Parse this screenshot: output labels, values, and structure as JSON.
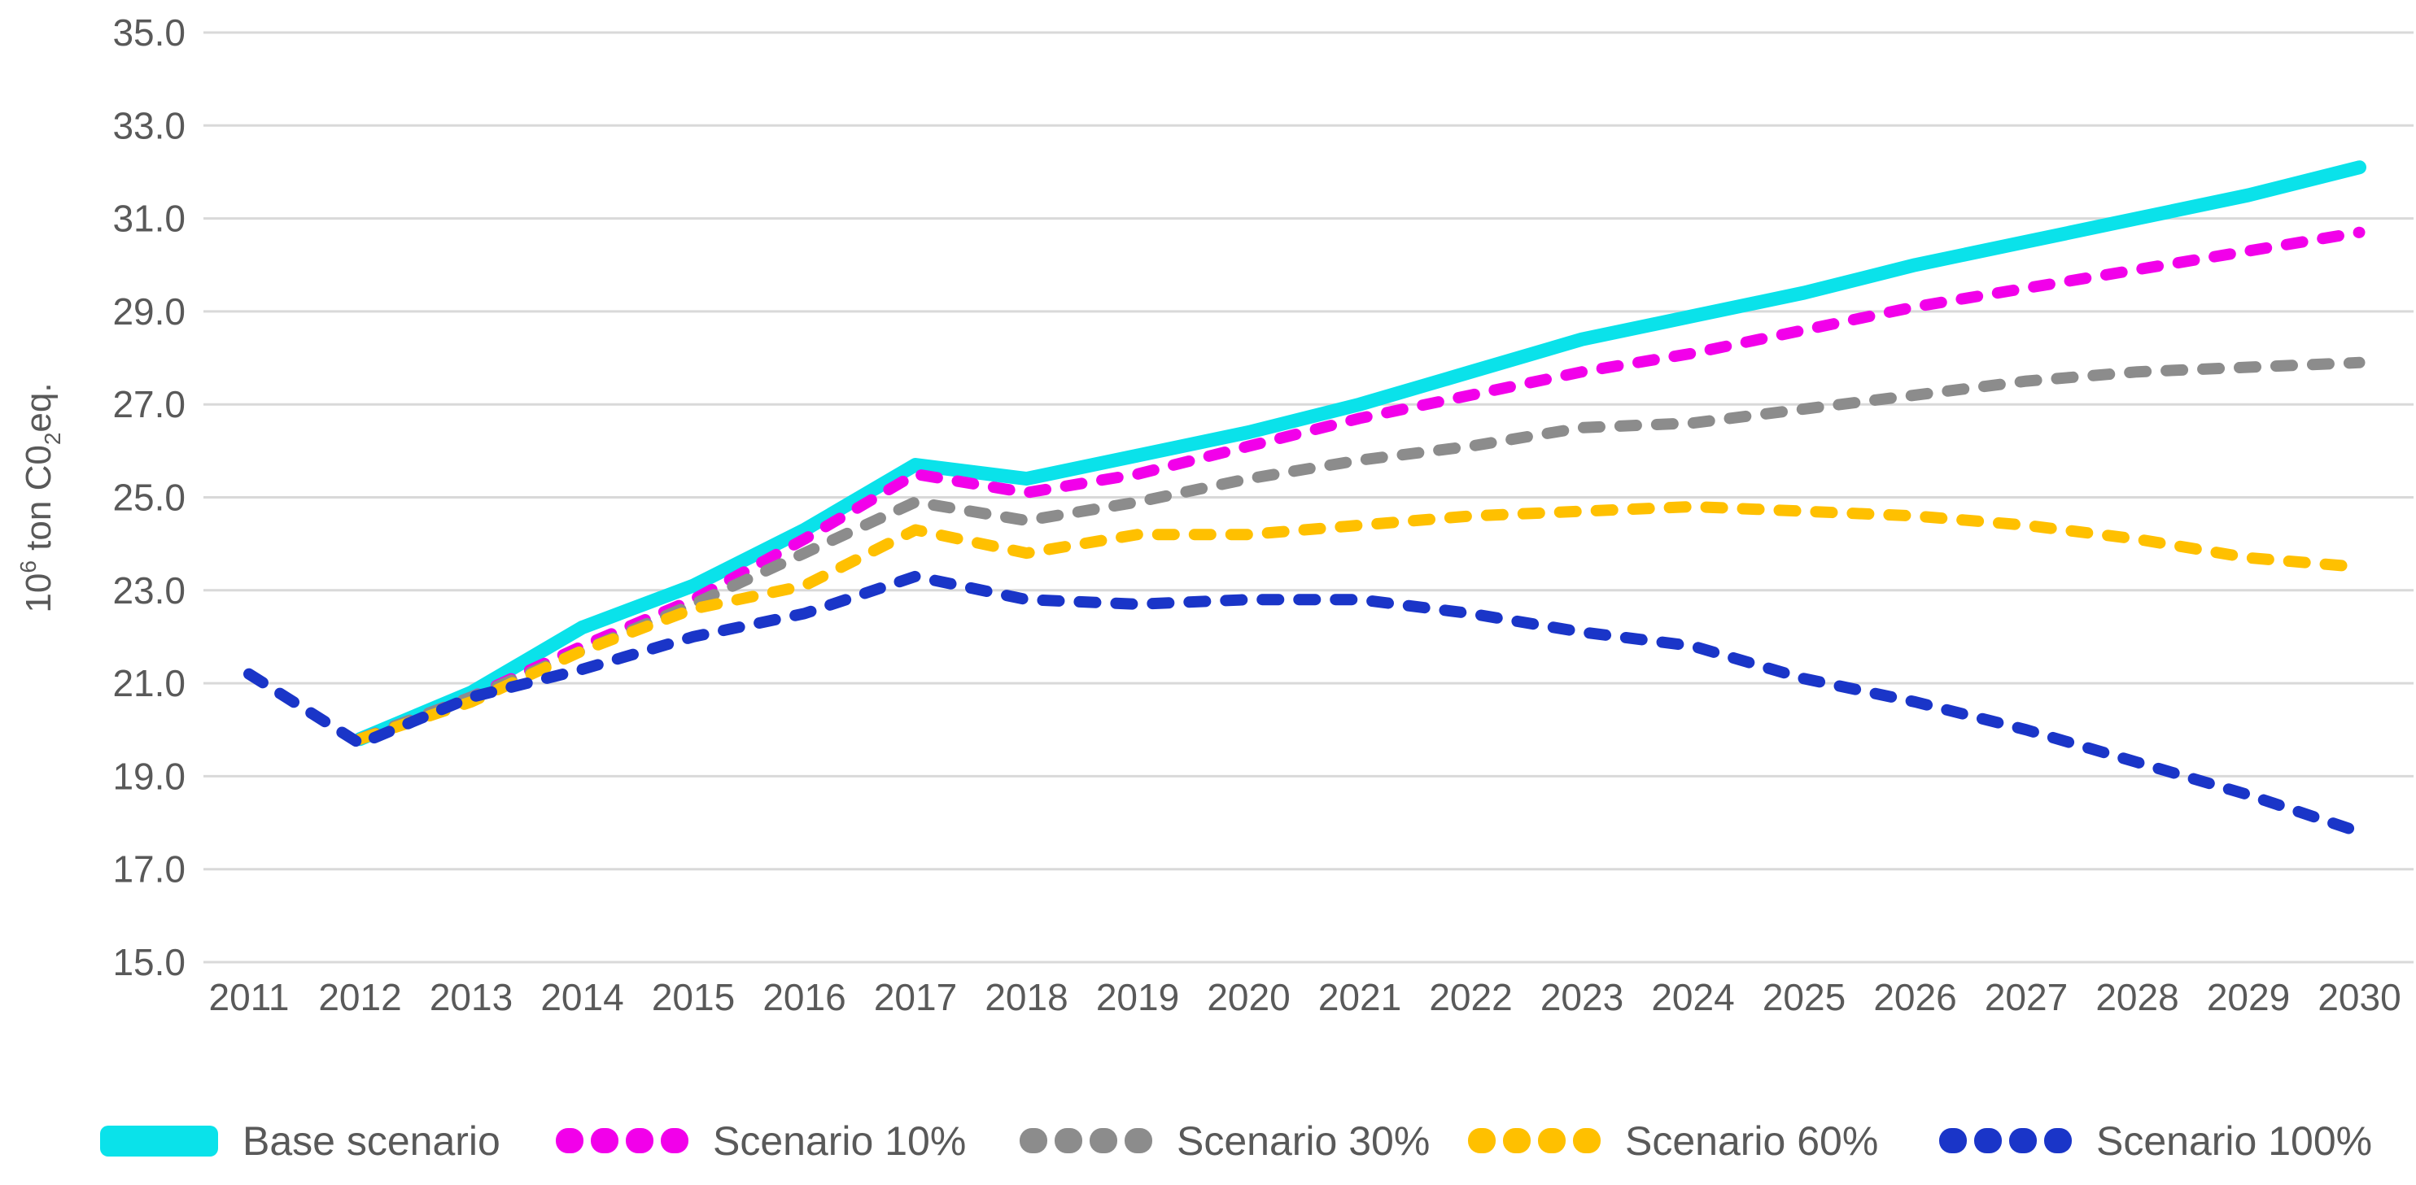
{
  "figure": {
    "background": "#ffffff",
    "text_color": "#595959",
    "gridline_color": "#d9d9d9"
  },
  "y_axis": {
    "label_flat": "10⁶ ton C0₂eq.",
    "parts": {
      "mantissa": "10",
      "exponent": "6",
      "middle": " ton C0",
      "subscript": "2",
      "suffix": "eq."
    },
    "tick_labels": [
      "35.0",
      "33.0",
      "31.0",
      "29.0",
      "27.0",
      "25.0",
      "23.0",
      "21.0",
      "19.0",
      "17.0",
      "15.0"
    ]
  },
  "chart_data": {
    "type": "line",
    "title": "",
    "xlabel": "",
    "ylabel": "10⁶ ton C0₂eq.",
    "ylim": [
      15.0,
      35.0
    ],
    "y_tick_step": 2.0,
    "grid": true,
    "legend_position": "bottom",
    "x": [
      "2011",
      "2012",
      "2013",
      "2014",
      "2015",
      "2016",
      "2017",
      "2018",
      "2019",
      "2020",
      "2021",
      "2022",
      "2023",
      "2024",
      "2025",
      "2026",
      "2027",
      "2028",
      "2029",
      "2030"
    ],
    "series": [
      {
        "name": "Base scenario",
        "color": "#0ae2ea",
        "style": "solid",
        "values": [
          null,
          19.8,
          20.8,
          22.2,
          23.1,
          24.3,
          25.7,
          25.4,
          25.9,
          26.4,
          27.0,
          27.7,
          28.4,
          28.9,
          29.4,
          30.0,
          30.5,
          31.0,
          31.5,
          32.1
        ]
      },
      {
        "name": "Scenario 10%",
        "color": "#f200ea",
        "style": "dotted",
        "values": [
          null,
          19.8,
          20.7,
          21.8,
          22.8,
          24.1,
          25.5,
          25.1,
          25.5,
          26.1,
          26.7,
          27.2,
          27.7,
          28.1,
          28.6,
          29.1,
          29.5,
          29.9,
          30.3,
          30.7
        ]
      },
      {
        "name": "Scenario 30%",
        "color": "#8c8c8c",
        "style": "dotted",
        "values": [
          null,
          19.8,
          20.7,
          21.7,
          22.7,
          23.8,
          24.9,
          24.5,
          24.9,
          25.4,
          25.8,
          26.1,
          26.5,
          26.6,
          26.9,
          27.2,
          27.5,
          27.7,
          27.8,
          27.9
        ]
      },
      {
        "name": "Scenario 60%",
        "color": "#ffc000",
        "style": "dotted",
        "values": [
          null,
          19.8,
          20.6,
          21.7,
          22.6,
          23.1,
          24.3,
          23.8,
          24.2,
          24.2,
          24.4,
          24.6,
          24.7,
          24.8,
          24.7,
          24.6,
          24.4,
          24.1,
          23.7,
          23.5
        ]
      },
      {
        "name": "Scenario 100%",
        "color": "#1a35c8",
        "style": "dotted",
        "values": [
          21.2,
          19.7,
          20.7,
          21.3,
          22.0,
          22.5,
          23.3,
          22.8,
          22.7,
          22.8,
          22.8,
          22.5,
          22.1,
          21.8,
          21.1,
          20.6,
          20.0,
          19.3,
          18.6,
          17.8
        ]
      }
    ]
  }
}
